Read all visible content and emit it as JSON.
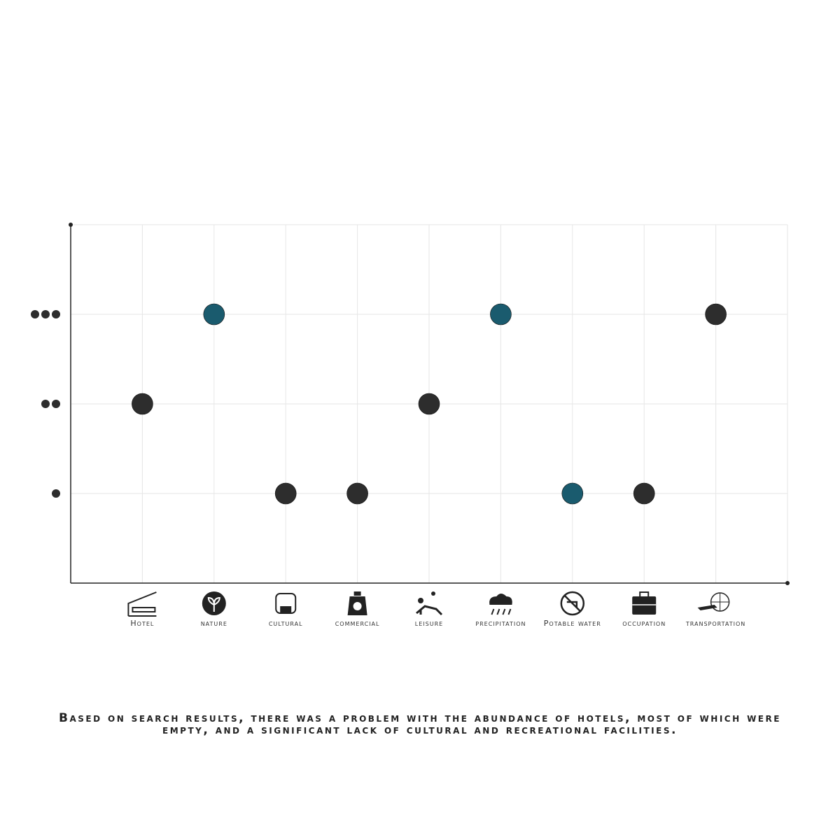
{
  "chart_data": {
    "type": "dot",
    "categories": [
      "Hotel",
      "nature",
      "cultural",
      "commercial",
      "leisure",
      "precipitation",
      "Potable water",
      "occupation",
      "transportation"
    ],
    "values": [
      2,
      3,
      1,
      1,
      2,
      3,
      1,
      1,
      3
    ],
    "colors": [
      "#2d2d2d",
      "#1a5b6e",
      "#2d2d2d",
      "#2d2d2d",
      "#2d2d2d",
      "#1a5b6e",
      "#1a5b6e",
      "#2d2d2d",
      "#2d2d2d"
    ],
    "ylim": [
      0,
      4
    ],
    "yticks": [
      1,
      2,
      3
    ],
    "grid": true,
    "caption": "Based on search results, there was a problem with the abundance of hotels, most of which were empty, and a significant lack of cultural and recreational facilities."
  }
}
